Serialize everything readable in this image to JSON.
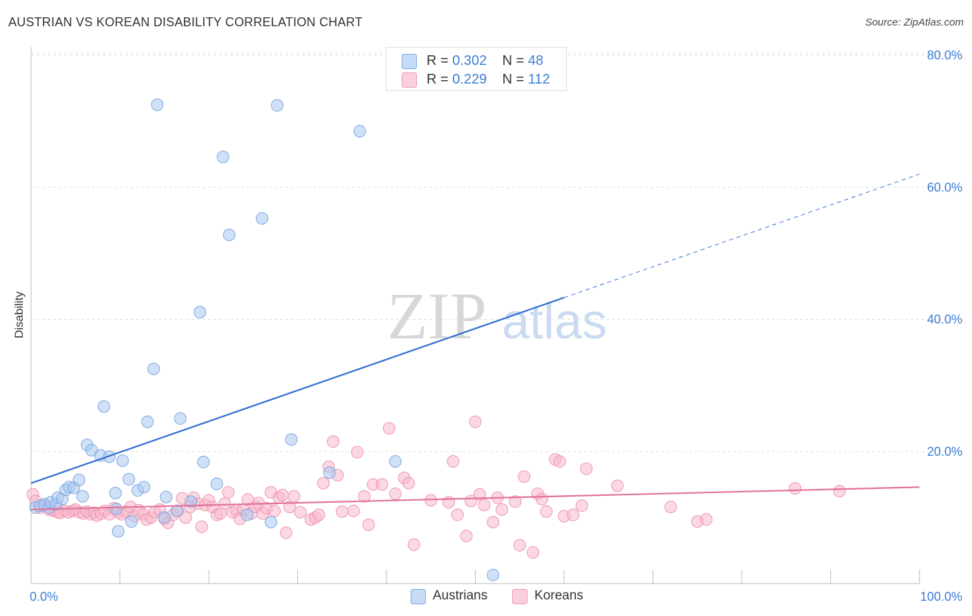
{
  "title": "AUSTRIAN VS KOREAN DISABILITY CORRELATION CHART",
  "source": "Source: ZipAtlas.com",
  "watermark": "ZIPatlas",
  "legend": {
    "r1_label": "R =",
    "r1_value": "0.302",
    "n1_label": "N =",
    "n1_value": "48",
    "r2_label": "R =",
    "r2_value": "0.229",
    "n2_label": "N =",
    "n2_value": "112"
  },
  "colors": {
    "blue_fill": "#a9c8f0",
    "blue_stroke": "#7aa7e0",
    "blue_line": "#2f6fd0",
    "pink_fill": "#f7b8ca",
    "pink_stroke": "#ee94b0",
    "pink_line": "#e2729a",
    "axis_text": "#3d7dd6",
    "grid": "#dddddd"
  },
  "chart_data": {
    "type": "scatter",
    "title": "AUSTRIAN VS KOREAN DISABILITY CORRELATION CHART",
    "xlabel": "",
    "ylabel": "Disability",
    "xlim": [
      0,
      100
    ],
    "ylim": [
      0,
      80
    ],
    "x_tick_labels": [
      "0.0%",
      "100.0%"
    ],
    "y_ticks": [
      20,
      40,
      60,
      80
    ],
    "y_tick_labels": [
      "20.0%",
      "40.0%",
      "60.0%",
      "80.0%"
    ],
    "grid": true,
    "legend_position": "top-center",
    "series": [
      {
        "name": "Austrians",
        "r": 0.302,
        "n": 48,
        "trend": {
          "x0": 0,
          "y0": 15.2,
          "x1": 60,
          "y1": 43.3,
          "dashed_to_x": 100,
          "dashed_to_y": 62.0
        },
        "points": [
          [
            0.5,
            11.5
          ],
          [
            1.0,
            11.8
          ],
          [
            1.5,
            12.0
          ],
          [
            2.0,
            11.5
          ],
          [
            2.2,
            12.3
          ],
          [
            2.8,
            12.0
          ],
          [
            3.0,
            13.0
          ],
          [
            3.5,
            12.8
          ],
          [
            3.9,
            14.2
          ],
          [
            4.3,
            14.6
          ],
          [
            4.8,
            14.5
          ],
          [
            5.4,
            15.7
          ],
          [
            5.8,
            13.2
          ],
          [
            6.3,
            21.0
          ],
          [
            6.8,
            20.2
          ],
          [
            7.8,
            19.4
          ],
          [
            8.2,
            26.8
          ],
          [
            8.8,
            19.2
          ],
          [
            9.5,
            13.7
          ],
          [
            9.6,
            11.3
          ],
          [
            9.8,
            7.9
          ],
          [
            10.3,
            18.6
          ],
          [
            11.0,
            15.8
          ],
          [
            11.3,
            9.4
          ],
          [
            12.0,
            14.1
          ],
          [
            12.7,
            14.6
          ],
          [
            13.1,
            24.5
          ],
          [
            13.8,
            32.5
          ],
          [
            14.2,
            72.5
          ],
          [
            15.0,
            10.0
          ],
          [
            15.2,
            13.1
          ],
          [
            16.4,
            11.0
          ],
          [
            16.8,
            25.0
          ],
          [
            18.0,
            12.4
          ],
          [
            19.0,
            41.1
          ],
          [
            19.4,
            18.4
          ],
          [
            20.9,
            15.1
          ],
          [
            21.6,
            64.6
          ],
          [
            22.3,
            52.8
          ],
          [
            24.3,
            10.4
          ],
          [
            26.0,
            55.3
          ],
          [
            27.0,
            9.3
          ],
          [
            27.7,
            72.4
          ],
          [
            29.3,
            21.8
          ],
          [
            33.6,
            16.8
          ],
          [
            37.0,
            68.5
          ],
          [
            41.0,
            18.5
          ],
          [
            52.0,
            1.3
          ]
        ]
      },
      {
        "name": "Koreans",
        "r": 0.229,
        "n": 112,
        "trend": {
          "x0": 0,
          "y0": 11.2,
          "x1": 100,
          "y1": 14.6
        },
        "points": [
          [
            0.2,
            13.5
          ],
          [
            0.5,
            12.5
          ],
          [
            1.0,
            11.5
          ],
          [
            1.5,
            11.8
          ],
          [
            2.0,
            11.2
          ],
          [
            2.5,
            11.0
          ],
          [
            3.0,
            10.8
          ],
          [
            3.3,
            10.7
          ],
          [
            3.8,
            11.0
          ],
          [
            4.2,
            10.8
          ],
          [
            4.7,
            11.0
          ],
          [
            5.0,
            11.2
          ],
          [
            5.5,
            10.8
          ],
          [
            5.9,
            10.6
          ],
          [
            6.3,
            10.9
          ],
          [
            6.7,
            10.5
          ],
          [
            7.1,
            10.7
          ],
          [
            7.4,
            10.3
          ],
          [
            7.9,
            10.6
          ],
          [
            8.3,
            11.0
          ],
          [
            8.8,
            10.5
          ],
          [
            9.3,
            11.4
          ],
          [
            9.8,
            10.8
          ],
          [
            10.2,
            10.5
          ],
          [
            10.7,
            10.9
          ],
          [
            11.2,
            11.6
          ],
          [
            11.6,
            10.2
          ],
          [
            12.1,
            11.1
          ],
          [
            12.6,
            10.5
          ],
          [
            13.0,
            9.7
          ],
          [
            13.5,
            10.0
          ],
          [
            13.9,
            10.8
          ],
          [
            14.5,
            11.2
          ],
          [
            15.0,
            9.8
          ],
          [
            15.4,
            9.2
          ],
          [
            16.0,
            10.4
          ],
          [
            16.5,
            11.0
          ],
          [
            17.0,
            12.9
          ],
          [
            17.4,
            10.0
          ],
          [
            17.9,
            11.6
          ],
          [
            18.3,
            13.0
          ],
          [
            18.8,
            12.1
          ],
          [
            19.2,
            8.6
          ],
          [
            19.6,
            11.9
          ],
          [
            20.0,
            12.6
          ],
          [
            20.4,
            11.6
          ],
          [
            20.9,
            10.4
          ],
          [
            21.3,
            10.6
          ],
          [
            21.8,
            12.1
          ],
          [
            22.2,
            13.8
          ],
          [
            22.7,
            10.8
          ],
          [
            23.1,
            11.1
          ],
          [
            23.5,
            9.8
          ],
          [
            23.9,
            11.2
          ],
          [
            24.4,
            12.7
          ],
          [
            24.8,
            10.6
          ],
          [
            25.3,
            11.6
          ],
          [
            25.6,
            12.2
          ],
          [
            26.1,
            10.6
          ],
          [
            26.5,
            11.4
          ],
          [
            27.0,
            13.8
          ],
          [
            27.4,
            11.0
          ],
          [
            27.9,
            13.0
          ],
          [
            28.3,
            13.4
          ],
          [
            28.7,
            7.7
          ],
          [
            29.1,
            11.6
          ],
          [
            29.6,
            13.2
          ],
          [
            30.3,
            10.8
          ],
          [
            31.5,
            9.7
          ],
          [
            32.0,
            10.0
          ],
          [
            32.4,
            10.4
          ],
          [
            32.9,
            15.2
          ],
          [
            33.5,
            17.7
          ],
          [
            34.0,
            21.5
          ],
          [
            34.5,
            16.4
          ],
          [
            35.0,
            10.9
          ],
          [
            36.3,
            11.0
          ],
          [
            36.7,
            19.9
          ],
          [
            37.5,
            13.2
          ],
          [
            38.0,
            8.9
          ],
          [
            38.5,
            15.0
          ],
          [
            39.5,
            15.0
          ],
          [
            40.3,
            23.5
          ],
          [
            41.0,
            13.6
          ],
          [
            42.0,
            16.0
          ],
          [
            42.5,
            15.2
          ],
          [
            43.1,
            5.9
          ],
          [
            45.0,
            12.6
          ],
          [
            47.0,
            12.3
          ],
          [
            47.5,
            18.5
          ],
          [
            48.0,
            10.4
          ],
          [
            49.0,
            7.2
          ],
          [
            49.5,
            12.5
          ],
          [
            50.0,
            24.5
          ],
          [
            50.5,
            13.5
          ],
          [
            51.0,
            11.9
          ],
          [
            52.0,
            9.3
          ],
          [
            52.5,
            13.0
          ],
          [
            53.0,
            11.2
          ],
          [
            54.5,
            12.4
          ],
          [
            55.0,
            5.8
          ],
          [
            55.5,
            16.2
          ],
          [
            56.5,
            4.7
          ],
          [
            57.0,
            13.6
          ],
          [
            57.5,
            12.8
          ],
          [
            58.0,
            10.9
          ],
          [
            59.0,
            18.8
          ],
          [
            59.5,
            18.5
          ],
          [
            60.0,
            10.2
          ],
          [
            61.0,
            10.4
          ],
          [
            62.0,
            11.8
          ],
          [
            62.5,
            17.4
          ],
          [
            66.0,
            14.8
          ],
          [
            72.0,
            11.6
          ],
          [
            75.0,
            9.4
          ],
          [
            76.0,
            9.7
          ],
          [
            86.0,
            14.4
          ],
          [
            91.0,
            14.0
          ]
        ]
      }
    ]
  }
}
